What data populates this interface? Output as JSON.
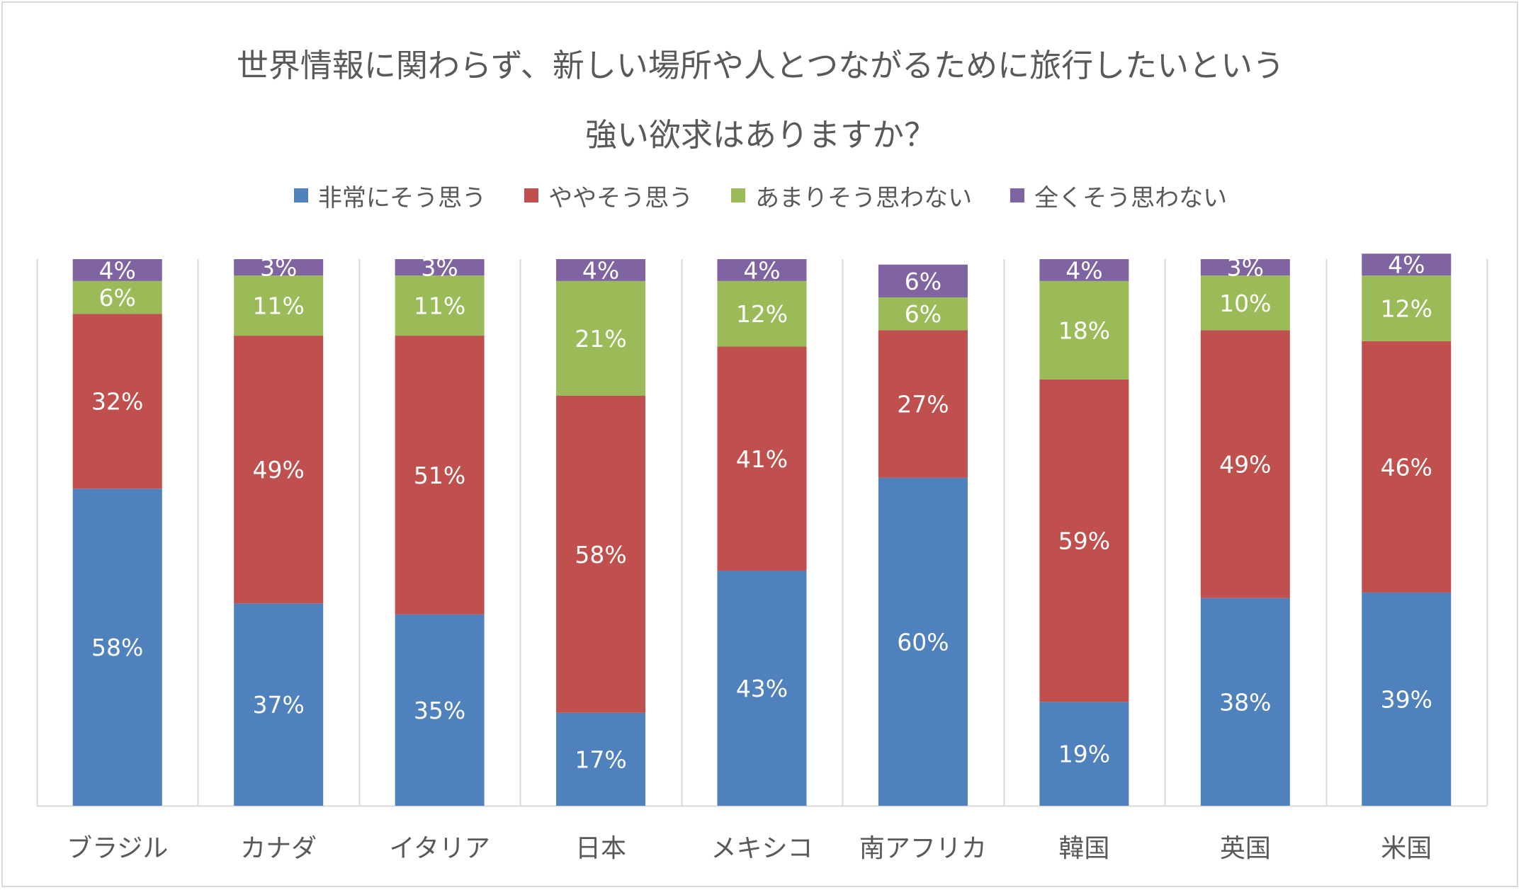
{
  "chart_data": {
    "type": "bar",
    "stacked": true,
    "percent_stacked": true,
    "title_lines": [
      "世界情報に関わらず、新しい場所や人とつながるために旅行したいという",
      "強い欲求はありますか？"
    ],
    "legend_position": "top",
    "grid": false,
    "ylim": [
      0,
      100
    ],
    "categories": [
      "ブラジル",
      "カナダ",
      "イタリア",
      "日本",
      "メキシコ",
      "南アフリカ",
      "韓国",
      "英国",
      "米国"
    ],
    "series": [
      {
        "name": "非常にそう思う",
        "color": "#4f81bd",
        "values": [
          58,
          37,
          35,
          17,
          43,
          60,
          19,
          38,
          39
        ]
      },
      {
        "name": "ややそう思う",
        "color": "#c0504d",
        "values": [
          32,
          49,
          51,
          58,
          41,
          27,
          59,
          49,
          46
        ]
      },
      {
        "name": "あまりそう思わない",
        "color": "#9bbb59",
        "values": [
          6,
          11,
          11,
          21,
          12,
          6,
          18,
          10,
          12
        ]
      },
      {
        "name": "全くそう思わない",
        "color": "#8064a2",
        "values": [
          4,
          3,
          3,
          4,
          4,
          6,
          4,
          3,
          4
        ]
      }
    ],
    "value_suffix": "%"
  }
}
